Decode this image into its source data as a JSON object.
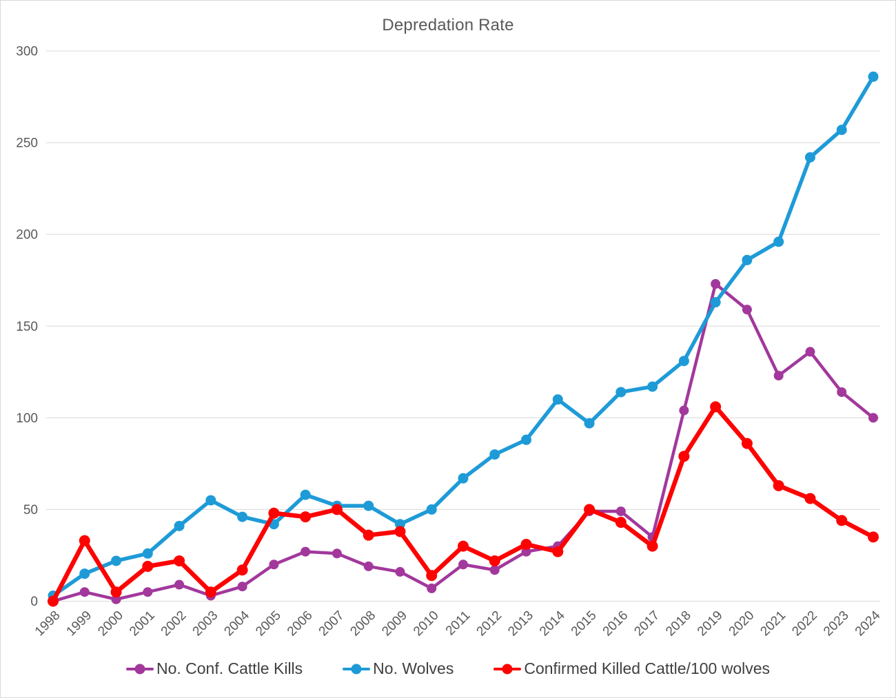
{
  "window": {
    "background": "#FFFFFF",
    "border_color": "#D9D9D9"
  },
  "chart_data": {
    "type": "line",
    "title": "Depredation Rate",
    "x": [
      1998,
      1999,
      2000,
      2001,
      2002,
      2003,
      2004,
      2005,
      2006,
      2007,
      2008,
      2009,
      2010,
      2011,
      2012,
      2013,
      2014,
      2015,
      2016,
      2017,
      2018,
      2019,
      2020,
      2021,
      2022,
      2023,
      2024
    ],
    "series": [
      {
        "name": "No. Conf. Cattle Kills",
        "color": "#A2389C",
        "values": [
          0,
          5,
          1,
          5,
          9,
          3,
          8,
          20,
          27,
          26,
          19,
          16,
          7,
          20,
          17,
          27,
          30,
          49,
          49,
          35,
          104,
          173,
          159,
          123,
          136,
          114,
          100
        ]
      },
      {
        "name": "No. Wolves",
        "color": "#1E9BD7",
        "values": [
          3,
          15,
          22,
          26,
          41,
          55,
          46,
          42,
          58,
          52,
          52,
          42,
          50,
          67,
          80,
          88,
          110,
          97,
          114,
          117,
          131,
          163,
          186,
          196,
          242,
          257,
          286
        ]
      },
      {
        "name": "Confirmed Killed Cattle/100 wolves",
        "color": "#FE0202",
        "values": [
          0,
          33,
          5,
          19,
          22,
          5,
          17,
          48,
          46,
          50,
          36,
          38,
          14,
          30,
          22,
          31,
          27,
          50,
          43,
          30,
          79,
          106,
          86,
          63,
          56,
          44,
          35
        ]
      }
    ],
    "ylim": [
      0,
      300
    ],
    "yticks": [
      0,
      50,
      100,
      150,
      200,
      250,
      300
    ],
    "grid": true,
    "legend_position": "bottom",
    "axis_color": "#595959",
    "grid_color": "#D9D9D9",
    "title_color": "#595959",
    "legend_text_color": "#404040"
  }
}
